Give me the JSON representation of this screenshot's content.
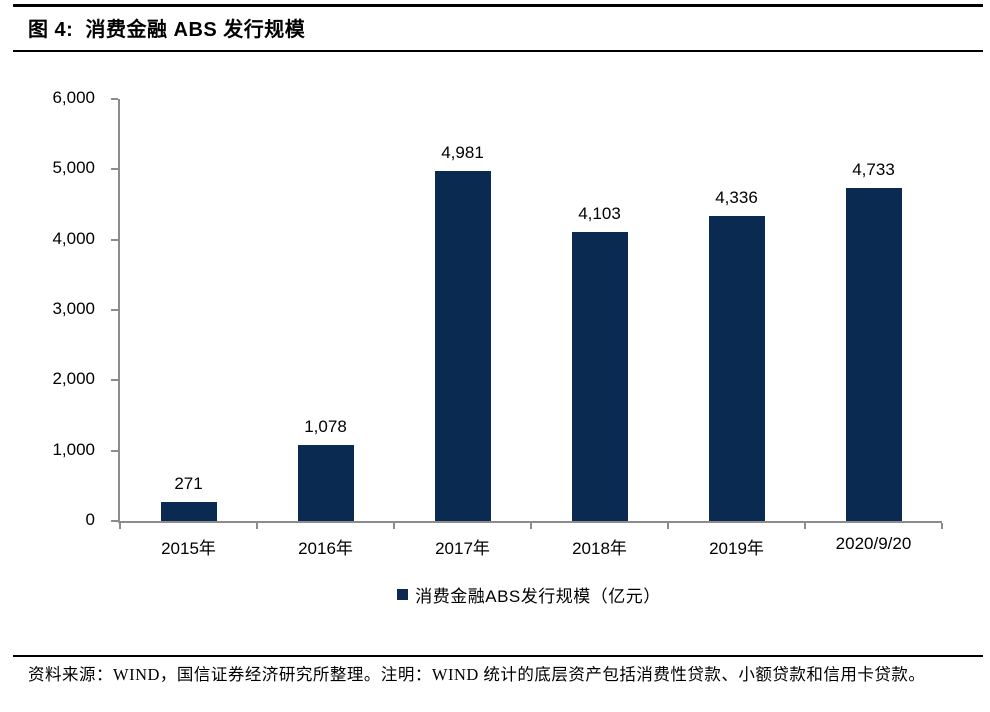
{
  "header": {
    "title": "图 4:  消费金融 ABS 发行规模"
  },
  "chart_data": {
    "type": "bar",
    "title": "消费金融 ABS 发行规模",
    "categories": [
      "2015年",
      "2016年",
      "2017年",
      "2018年",
      "2019年",
      "2020/9/20"
    ],
    "values": [
      271,
      1078,
      4981,
      4103,
      4336,
      4733
    ],
    "value_labels": [
      "271",
      "1,078",
      "4,981",
      "4,103",
      "4,336",
      "4,733"
    ],
    "series_name": "消费金融ABS发行规模（亿元）",
    "ylim": [
      0,
      6000
    ],
    "ytick_values": [
      0,
      1000,
      2000,
      3000,
      4000,
      5000,
      6000
    ],
    "ytick_labels": [
      "0",
      "1,000",
      "2,000",
      "3,000",
      "4,000",
      "5,000",
      "6,000"
    ],
    "grid": false,
    "legend_position": "bottom",
    "bar_color": "#0b2a52",
    "axis_color": "#8c8c8c"
  },
  "legend": {
    "label": "消费金融ABS发行规模（亿元）"
  },
  "footer": {
    "source_note": "资料来源：WIND，国信证券经济研究所整理。注明：WIND 统计的底层资产包括消费性贷款、小额贷款和信用卡贷款。"
  }
}
